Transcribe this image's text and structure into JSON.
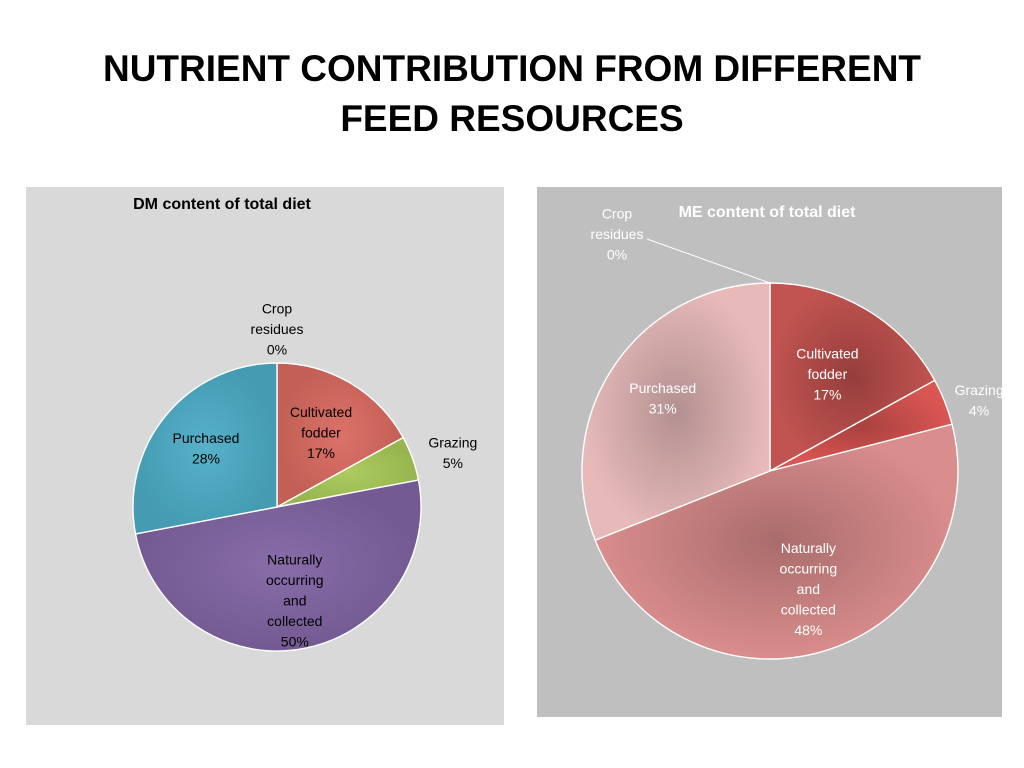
{
  "title": {
    "line1": "NUTRIENT CONTRIBUTION FROM DIFFERENT",
    "line2": "FEED RESOURCES"
  },
  "chart_data": [
    {
      "type": "pie",
      "title": "DM content of total diet",
      "panel_color": "#d9d9d9",
      "title_color": "#000000",
      "label_color": "#000000",
      "slices": [
        {
          "label": [
            "Crop",
            "residues",
            "0%"
          ],
          "value": 0,
          "color": "#9bbb59"
        },
        {
          "label": [
            "Cultivated",
            "fodder",
            "17%"
          ],
          "value": 17,
          "color": "#d9695f"
        },
        {
          "label": [
            "Grazing",
            "5%"
          ],
          "value": 5,
          "color": "#a7c957"
        },
        {
          "label": [
            "Naturally",
            "occurring",
            "and",
            "collected",
            "50%"
          ],
          "value": 50,
          "color": "#8064a2"
        },
        {
          "label": [
            "Purchased",
            "28%"
          ],
          "value": 28,
          "color": "#4bacc6"
        }
      ]
    },
    {
      "type": "pie",
      "title": "ME content   of total diet",
      "panel_color": "#bfbfbf",
      "title_color": "#ffffff",
      "label_color": "#ffffff",
      "slices": [
        {
          "label": [
            "Crop",
            "residues",
            "0%"
          ],
          "value": 0,
          "color": "#c0504d"
        },
        {
          "label": [
            "Cultivated",
            "fodder",
            "17%"
          ],
          "value": 17,
          "color": "#c0504d"
        },
        {
          "label": [
            "Grazing",
            "4%"
          ],
          "value": 4,
          "color": "#d9534f"
        },
        {
          "label": [
            "Naturally",
            "occurring",
            "and",
            "collected",
            "48%"
          ],
          "value": 48,
          "color": "#d98b8b"
        },
        {
          "label": [
            "Purchased",
            "31%"
          ],
          "value": 31,
          "color": "#e6b9b8"
        }
      ]
    }
  ]
}
